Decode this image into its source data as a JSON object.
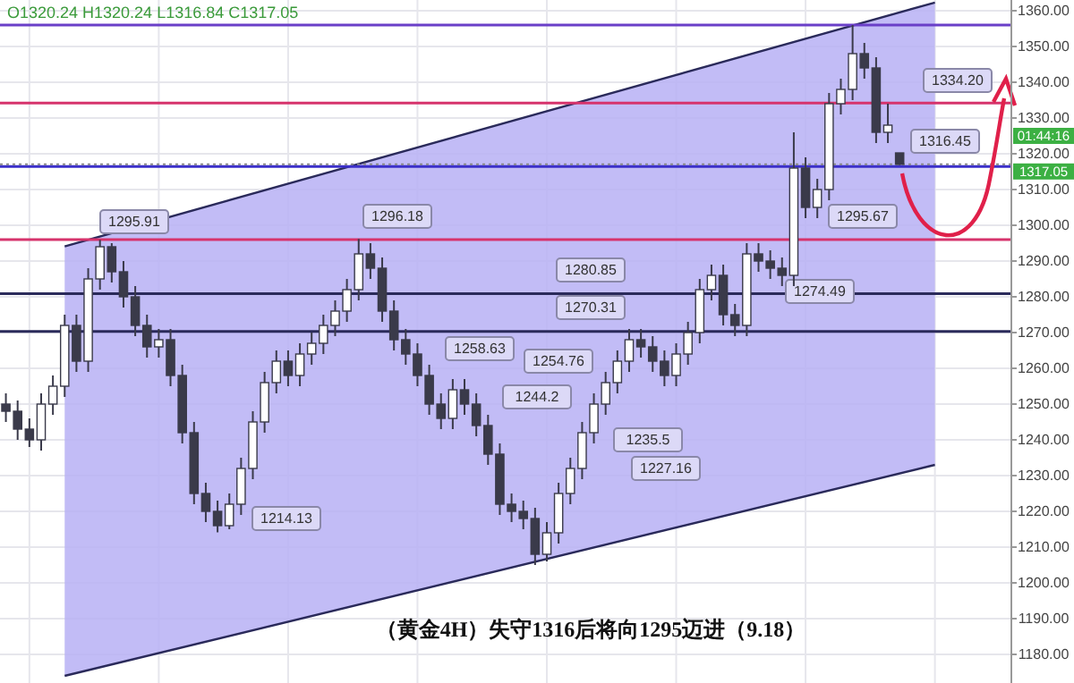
{
  "chart_data": {
    "type": "candlestick",
    "title": "（黄金4H）失守1316后将向1295迈进（9.18）",
    "categories": [
      null,
      null,
      null,
      null,
      null,
      null,
      null,
      null,
      null,
      null,
      null,
      null,
      null,
      null,
      null,
      null,
      null,
      null,
      null,
      null,
      null,
      null,
      null,
      null,
      null,
      null,
      null,
      null,
      null,
      null,
      null,
      null,
      null,
      null,
      null,
      null,
      null,
      null,
      null,
      null,
      null,
      null,
      null,
      null,
      null,
      null,
      null,
      null,
      null,
      null,
      null,
      null,
      null,
      null,
      null,
      null,
      null,
      null,
      null,
      null,
      null,
      null,
      null,
      null,
      null,
      null,
      null,
      null,
      null,
      null,
      null,
      null,
      null,
      null,
      null,
      null,
      null,
      null,
      null,
      null,
      null,
      null,
      null,
      null,
      null,
      null
    ],
    "ohlc": [
      [
        1250,
        1253,
        1245,
        1248
      ],
      [
        1248,
        1251,
        1240,
        1243
      ],
      [
        1243,
        1246,
        1238,
        1240
      ],
      [
        1240,
        1253,
        1237,
        1250
      ],
      [
        1250,
        1258,
        1247,
        1255
      ],
      [
        1255,
        1275,
        1252,
        1272
      ],
      [
        1272,
        1275,
        1259,
        1262
      ],
      [
        1262,
        1288,
        1259,
        1285
      ],
      [
        1285,
        1295.91,
        1282,
        1294
      ],
      [
        1294,
        1295,
        1284,
        1287
      ],
      [
        1287,
        1290,
        1277,
        1280
      ],
      [
        1280,
        1283,
        1269,
        1272
      ],
      [
        1272,
        1275,
        1263,
        1266
      ],
      [
        1266,
        1271,
        1263,
        1268
      ],
      [
        1268,
        1271,
        1255,
        1258
      ],
      [
        1258,
        1261,
        1239,
        1242
      ],
      [
        1242,
        1245,
        1222,
        1225
      ],
      [
        1225,
        1228,
        1217,
        1220
      ],
      [
        1220,
        1223,
        1214.13,
        1216
      ],
      [
        1216,
        1225,
        1215,
        1222
      ],
      [
        1222,
        1235,
        1219,
        1232
      ],
      [
        1232,
        1248,
        1229,
        1245
      ],
      [
        1245,
        1259,
        1242,
        1256
      ],
      [
        1256,
        1265,
        1253,
        1262
      ],
      [
        1262,
        1265,
        1255,
        1258
      ],
      [
        1258,
        1267,
        1255,
        1264
      ],
      [
        1264,
        1270,
        1261,
        1267
      ],
      [
        1267,
        1275,
        1264,
        1272
      ],
      [
        1272,
        1279,
        1269,
        1276
      ],
      [
        1276,
        1285,
        1273,
        1282
      ],
      [
        1282,
        1296.18,
        1279,
        1292
      ],
      [
        1292,
        1295,
        1285,
        1288
      ],
      [
        1288,
        1291,
        1273,
        1276
      ],
      [
        1276,
        1279,
        1265,
        1268
      ],
      [
        1268,
        1271,
        1261,
        1264
      ],
      [
        1264,
        1267,
        1255,
        1258
      ],
      [
        1258,
        1261,
        1247,
        1250
      ],
      [
        1250,
        1253,
        1243,
        1246
      ],
      [
        1246,
        1257,
        1243,
        1254
      ],
      [
        1254,
        1257,
        1247,
        1250
      ],
      [
        1250,
        1253,
        1241,
        1244
      ],
      [
        1244,
        1247,
        1233,
        1236
      ],
      [
        1236,
        1239,
        1219,
        1222
      ],
      [
        1222,
        1225,
        1217,
        1220
      ],
      [
        1220,
        1223,
        1215,
        1218
      ],
      [
        1218,
        1221,
        1205,
        1208
      ],
      [
        1208,
        1217,
        1206,
        1214
      ],
      [
        1214,
        1228,
        1211,
        1225
      ],
      [
        1225,
        1235,
        1222,
        1232
      ],
      [
        1232,
        1245,
        1229,
        1242
      ],
      [
        1242,
        1253,
        1239,
        1250
      ],
      [
        1250,
        1259,
        1247,
        1256
      ],
      [
        1256,
        1265,
        1253,
        1262
      ],
      [
        1262,
        1271,
        1259,
        1268
      ],
      [
        1268,
        1271,
        1263,
        1266
      ],
      [
        1266,
        1269,
        1259,
        1262
      ],
      [
        1262,
        1265,
        1255,
        1258
      ],
      [
        1258,
        1267,
        1255,
        1264
      ],
      [
        1264,
        1273,
        1261,
        1270
      ],
      [
        1270,
        1285,
        1267,
        1282
      ],
      [
        1282,
        1289,
        1279,
        1286
      ],
      [
        1286,
        1289,
        1272,
        1275
      ],
      [
        1275,
        1278,
        1269,
        1272
      ],
      [
        1272,
        1295,
        1269,
        1292
      ],
      [
        1292,
        1295,
        1287,
        1290
      ],
      [
        1290,
        1293,
        1285,
        1288
      ],
      [
        1288,
        1291,
        1283,
        1286
      ],
      [
        1286,
        1326,
        1283,
        1316
      ],
      [
        1316,
        1319,
        1302,
        1305
      ],
      [
        1305,
        1313,
        1302,
        1310
      ],
      [
        1310,
        1337,
        1307,
        1334
      ],
      [
        1334,
        1341,
        1331,
        1338
      ],
      [
        1338,
        1356,
        1335,
        1348
      ],
      [
        1348,
        1351,
        1341,
        1344
      ],
      [
        1344,
        1347,
        1323,
        1326
      ],
      [
        1326,
        1334,
        1323,
        1328
      ],
      [
        1320.24,
        1320.24,
        1316.84,
        1317.05
      ],
      null,
      null,
      null,
      null,
      null,
      null,
      null,
      null,
      null
    ],
    "series": [
      {
        "type": "line",
        "color": "#2a2a5a",
        "values": [
          null,
          null,
          null,
          null,
          null,
          1294.1,
          null,
          null,
          null,
          null,
          null,
          null,
          null,
          null,
          null,
          null,
          null,
          null,
          null,
          null,
          null,
          null,
          null,
          null,
          null,
          null,
          null,
          null,
          null,
          null,
          null,
          null,
          null,
          null,
          null,
          null,
          null,
          null,
          null,
          null,
          null,
          null,
          null,
          null,
          null,
          null,
          null,
          null,
          null,
          null,
          null,
          null,
          null,
          null,
          null,
          null,
          null,
          null,
          null,
          null,
          null,
          null,
          null,
          null,
          null,
          null,
          null,
          null,
          null,
          null,
          null,
          null,
          null,
          null,
          null,
          null,
          null,
          null,
          null,
          1362.3,
          null,
          null,
          null,
          null,
          null,
          null
        ]
      },
      {
        "type": "line",
        "color": "#2a2a5a",
        "values": [
          null,
          null,
          null,
          null,
          null,
          1174,
          null,
          null,
          null,
          null,
          null,
          null,
          null,
          null,
          null,
          null,
          null,
          null,
          null,
          null,
          null,
          null,
          null,
          null,
          null,
          null,
          null,
          null,
          null,
          null,
          null,
          null,
          null,
          null,
          null,
          null,
          null,
          null,
          null,
          null,
          null,
          null,
          null,
          null,
          null,
          null,
          null,
          null,
          null,
          null,
          null,
          null,
          null,
          null,
          null,
          null,
          null,
          null,
          null,
          null,
          null,
          null,
          null,
          null,
          null,
          null,
          null,
          null,
          null,
          null,
          null,
          null,
          null,
          null,
          null,
          null,
          null,
          null,
          null,
          1233,
          null,
          null,
          null,
          null,
          null,
          null
        ]
      }
    ],
    "ylim": [
      1172,
      1363
    ],
    "yticks": [
      {
        "value": 1180,
        "label": "1180.00"
      },
      {
        "value": 1190,
        "label": "1190.00"
      },
      {
        "value": 1200,
        "label": "1200.00"
      },
      {
        "value": 1210,
        "label": "1210.00"
      },
      {
        "value": 1220,
        "label": "1220.00"
      },
      {
        "value": 1230,
        "label": "1230.00"
      },
      {
        "value": 1240,
        "label": "1240.00"
      },
      {
        "value": 1250,
        "label": "1250.00"
      },
      {
        "value": 1260,
        "label": "1260.00"
      },
      {
        "value": 1270,
        "label": "1270.00"
      },
      {
        "value": 1280,
        "label": "1280.00"
      },
      {
        "value": 1290,
        "label": "1290.00"
      },
      {
        "value": 1300,
        "label": "1300.00"
      },
      {
        "value": 1310,
        "label": "1310.00"
      },
      {
        "value": 1320,
        "label": "1320.00"
      },
      {
        "value": 1330,
        "label": "1330.00"
      },
      {
        "value": 1340,
        "label": "1340.00"
      },
      {
        "value": 1350,
        "label": "1350.00"
      },
      {
        "value": 1360,
        "label": "1360.00"
      }
    ],
    "ref_lines": [
      {
        "axis": "y",
        "value": 1356,
        "color": "#6a3fc8"
      },
      {
        "axis": "y",
        "value": 1296,
        "color": "#d6336c"
      },
      {
        "axis": "y",
        "value": 1280.85,
        "label": "1280.85",
        "color": "#2a2a5a"
      },
      {
        "axis": "y",
        "value": 1270.31,
        "label": "1270.31",
        "color": "#2a2a5a"
      },
      {
        "axis": "y",
        "value": 1316.45,
        "label": "1316.45",
        "color": "#3b2fc9"
      },
      {
        "axis": "y",
        "value": 1334.2,
        "label": "1334.20",
        "color": "#d6336c"
      },
      {
        "axis": "y",
        "value": 1317.05,
        "label": "1317.05",
        "color": "#888888",
        "line_style": "dotted"
      }
    ],
    "annotations": [
      "O1320.24 H1320.24 L1316.84 C1317.05",
      "1295.91",
      "1296.18",
      "1258.63",
      "1254.76",
      "1244.2",
      "1235.5",
      "1227.16",
      "1214.13",
      "1274.49",
      "1295.67",
      "01:44:16"
    ],
    "grid": true,
    "tick_labels": "y"
  }
}
